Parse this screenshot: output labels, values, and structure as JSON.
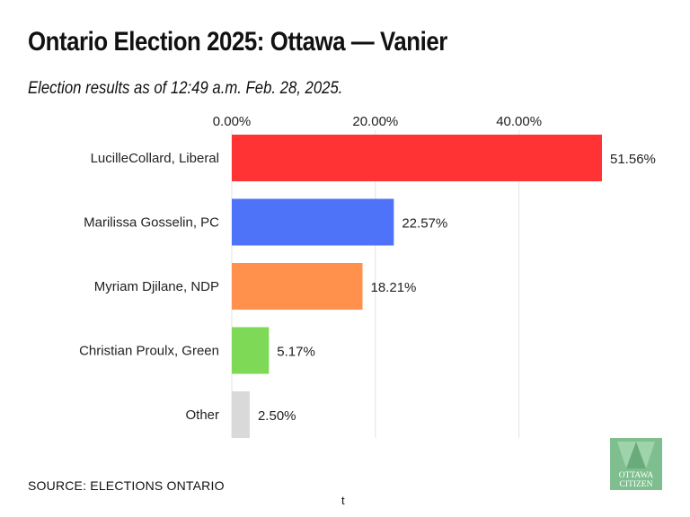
{
  "header": {
    "title": "Ontario Election 2025: Ottawa — Vanier",
    "subtitle": "Election results as of 12:49 a.m. Feb. 28, 2025."
  },
  "chart_data": {
    "type": "bar",
    "orientation": "horizontal",
    "title": "Ontario Election 2025: Ottawa — Vanier",
    "subtitle": "Election results as of 12:49 a.m. Feb. 28, 2025.",
    "categories": [
      "LucilleCollard, Liberal",
      "Marilissa Gosselin, PC",
      "Myriam Djilane, NDP",
      "Christian Proulx, Green",
      "Other"
    ],
    "values": [
      51.56,
      22.57,
      18.21,
      5.17,
      2.5
    ],
    "value_labels": [
      "51.56%",
      "22.57%",
      "18.21%",
      "5.17%",
      "2.50%"
    ],
    "colors": [
      "#ff3333",
      "#4f73f8",
      "#ff914d",
      "#7ed957",
      "#d9d9d9"
    ],
    "xlim": [
      0,
      52
    ],
    "x_ticks": [
      0,
      20,
      40
    ],
    "x_tick_labels": [
      "0.00%",
      "20.00%",
      "40.00%"
    ],
    "x_axis_position": "top",
    "grid": true,
    "legend": "none",
    "xlabel": "",
    "ylabel": ""
  },
  "footer": {
    "source": "SOURCE: ELECTIONS ONTARIO",
    "note": "t"
  },
  "logo": {
    "line1": "OTTAWA",
    "line2": "CITIZEN",
    "color": "#7fbf8f"
  }
}
